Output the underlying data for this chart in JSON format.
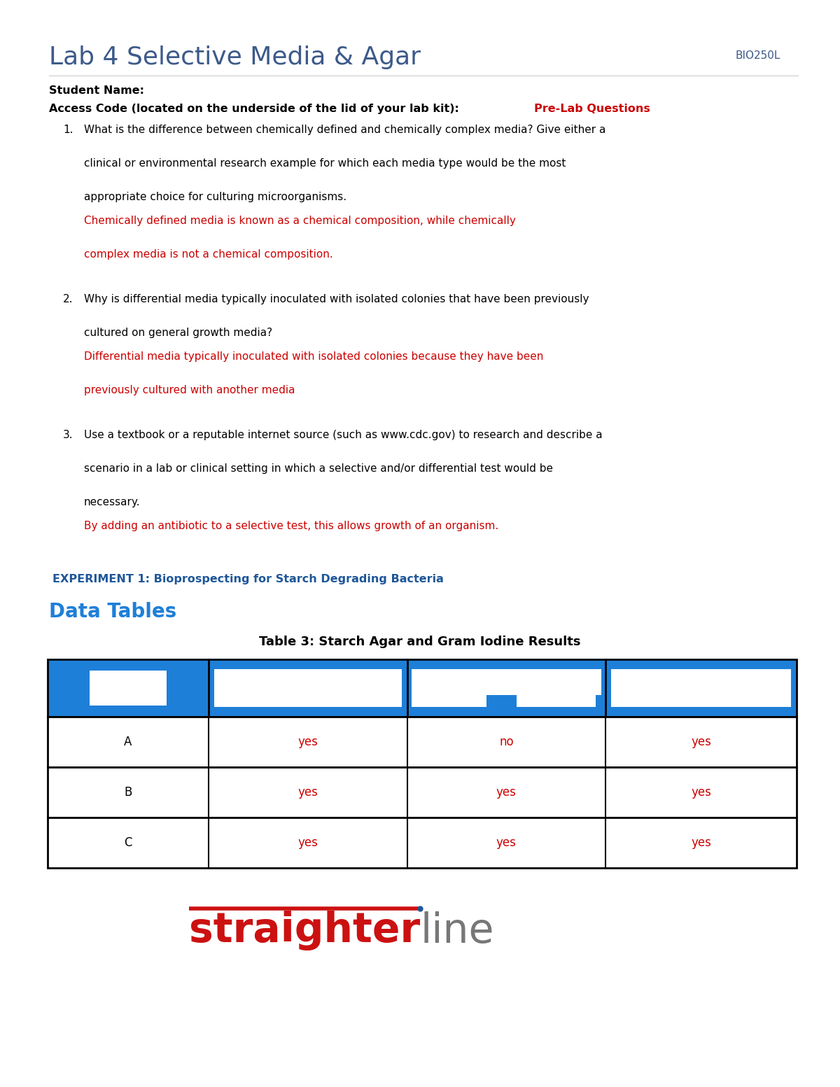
{
  "title": "Lab 4 Selective Media & Agar",
  "course_code": "BIO250L",
  "student_name_label": "Student Name:",
  "access_code_label": "Access Code (located on the underside of the lid of your lab kit):",
  "pre_lab_label": "Pre-Lab Questions",
  "q1_text": [
    "What is the difference between chemically defined and chemically complex media? Give either a",
    "",
    "clinical or environmental research example for which each media type would be the most",
    "",
    "appropriate choice for culturing microorganisms."
  ],
  "q1_answer": [
    "Chemically defined media is known as a chemical composition, while chemically",
    "",
    "complex media is not a chemical composition."
  ],
  "q2_text": [
    "Why is differential media typically inoculated with isolated colonies that have been previously",
    "",
    "cultured on general growth media?"
  ],
  "q2_answer": [
    "Differential media typically inoculated with isolated colonies because they have been",
    "",
    "previously cultured with another media"
  ],
  "q3_text": [
    "Use a textbook or a reputable internet source (such as www.cdc.gov) to research and describe a",
    "",
    "scenario in a lab or clinical setting in which a selective and/or differential test would be",
    "",
    "necessary."
  ],
  "q3_answer": [
    "By adding an antibiotic to a selective test, this allows growth of an organism."
  ],
  "experiment_label": "EXPERIMENT 1: Bioprospecting for Starch Degrading Bacteria",
  "data_tables_label": "Data Tables",
  "table_title": "Table 3: Starch Agar and Gram Iodine Results",
  "table_header_color": "#1E7FD8",
  "table_rows": [
    {
      "label": "A",
      "col2": "yes",
      "col3": "no",
      "col4": "yes"
    },
    {
      "label": "B",
      "col2": "yes",
      "col3": "yes",
      "col4": "yes"
    },
    {
      "label": "C",
      "col2": "yes",
      "col3": "yes",
      "col4": "yes"
    }
  ],
  "table_data_color": "#CC0000",
  "bg_color": "#FFFFFF",
  "title_color": "#3D5A8A",
  "course_code_color": "#3D5A8A",
  "experiment_color": "#1E5799",
  "data_tables_color": "#1E7FD8",
  "black": "#000000",
  "red": "#CC0000"
}
